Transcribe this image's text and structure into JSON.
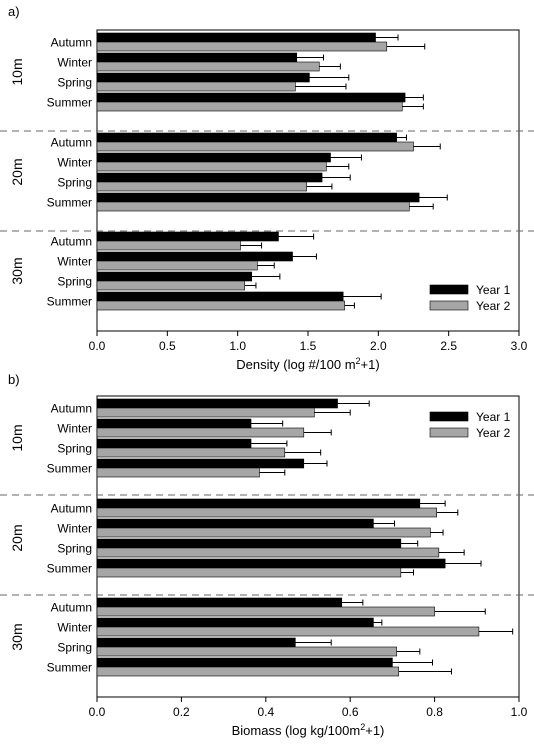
{
  "chart_data": [
    {
      "panel_label": "a)",
      "type": "bar",
      "orientation": "horizontal",
      "xlabel": "Density (log #/100 m",
      "xlabel_sup": "2",
      "xlabel_tail": "+1)",
      "xlim": [
        0,
        3.0
      ],
      "xticks": [
        "0.0",
        "0.5",
        "1.0",
        "1.5",
        "2.0",
        "2.5",
        "3.0"
      ],
      "legend": {
        "position": "bottom-right",
        "entries": [
          "Year 1",
          "Year 2"
        ]
      },
      "groups": [
        {
          "name": "10m",
          "categories": [
            "Autumn",
            "Winter",
            "Spring",
            "Summer"
          ],
          "series": [
            {
              "name": "Year 1",
              "values": [
                1.98,
                1.42,
                1.51,
                2.19
              ],
              "errors": [
                0.16,
                0.19,
                0.28,
                0.13
              ]
            },
            {
              "name": "Year 2",
              "values": [
                2.06,
                1.58,
                1.41,
                2.17
              ],
              "errors": [
                0.27,
                0.15,
                0.36,
                0.15
              ]
            }
          ]
        },
        {
          "name": "20m",
          "categories": [
            "Autumn",
            "Winter",
            "Spring",
            "Summer"
          ],
          "series": [
            {
              "name": "Year 1",
              "values": [
                2.13,
                1.66,
                1.6,
                2.29
              ],
              "errors": [
                0.07,
                0.22,
                0.2,
                0.2
              ]
            },
            {
              "name": "Year 2",
              "values": [
                2.25,
                1.63,
                1.49,
                2.22
              ],
              "errors": [
                0.19,
                0.16,
                0.18,
                0.17
              ]
            }
          ]
        },
        {
          "name": "30m",
          "categories": [
            "Autumn",
            "Winter",
            "Spring",
            "Summer"
          ],
          "series": [
            {
              "name": "Year 1",
              "values": [
                1.29,
                1.39,
                1.1,
                1.75
              ],
              "errors": [
                0.25,
                0.17,
                0.2,
                0.27
              ]
            },
            {
              "name": "Year 2",
              "values": [
                1.02,
                1.14,
                1.05,
                1.76
              ],
              "errors": [
                0.15,
                0.12,
                0.08,
                0.07
              ]
            }
          ]
        }
      ]
    },
    {
      "panel_label": "b)",
      "type": "bar",
      "orientation": "horizontal",
      "xlabel": "Biomass (log kg/100m",
      "xlabel_sup": "2",
      "xlabel_tail": "+1)",
      "xlim": [
        0,
        1.0
      ],
      "xticks": [
        "0.0",
        "0.2",
        "0.4",
        "0.6",
        "0.8",
        "1.0"
      ],
      "legend": {
        "position": "top-right",
        "entries": [
          "Year 1",
          "Year 2"
        ]
      },
      "groups": [
        {
          "name": "10m",
          "categories": [
            "Autumn",
            "Winter",
            "Spring",
            "Summer"
          ],
          "series": [
            {
              "name": "Year 1",
              "values": [
                0.57,
                0.365,
                0.365,
                0.49
              ],
              "errors": [
                0.075,
                0.075,
                0.085,
                0.055
              ]
            },
            {
              "name": "Year 2",
              "values": [
                0.515,
                0.49,
                0.445,
                0.385
              ],
              "errors": [
                0.085,
                0.065,
                0.085,
                0.06
              ]
            }
          ]
        },
        {
          "name": "20m",
          "categories": [
            "Autumn",
            "Winter",
            "Spring",
            "Summer"
          ],
          "series": [
            {
              "name": "Year 1",
              "values": [
                0.765,
                0.655,
                0.72,
                0.825
              ],
              "errors": [
                0.06,
                0.05,
                0.04,
                0.085
              ]
            },
            {
              "name": "Year 2",
              "values": [
                0.805,
                0.79,
                0.81,
                0.72
              ],
              "errors": [
                0.05,
                0.03,
                0.06,
                0.03
              ]
            }
          ]
        },
        {
          "name": "30m",
          "categories": [
            "Autumn",
            "Winter",
            "Spring",
            "Summer"
          ],
          "series": [
            {
              "name": "Year 1",
              "values": [
                0.58,
                0.655,
                0.47,
                0.7
              ],
              "errors": [
                0.05,
                0.02,
                0.085,
                0.095
              ]
            },
            {
              "name": "Year 2",
              "values": [
                0.8,
                0.905,
                0.71,
                0.715
              ],
              "errors": [
                0.12,
                0.08,
                0.055,
                0.125
              ]
            }
          ]
        }
      ]
    }
  ],
  "colors": {
    "year1": "#000000",
    "year2": "#a6a6a6",
    "divider": "#666666"
  }
}
